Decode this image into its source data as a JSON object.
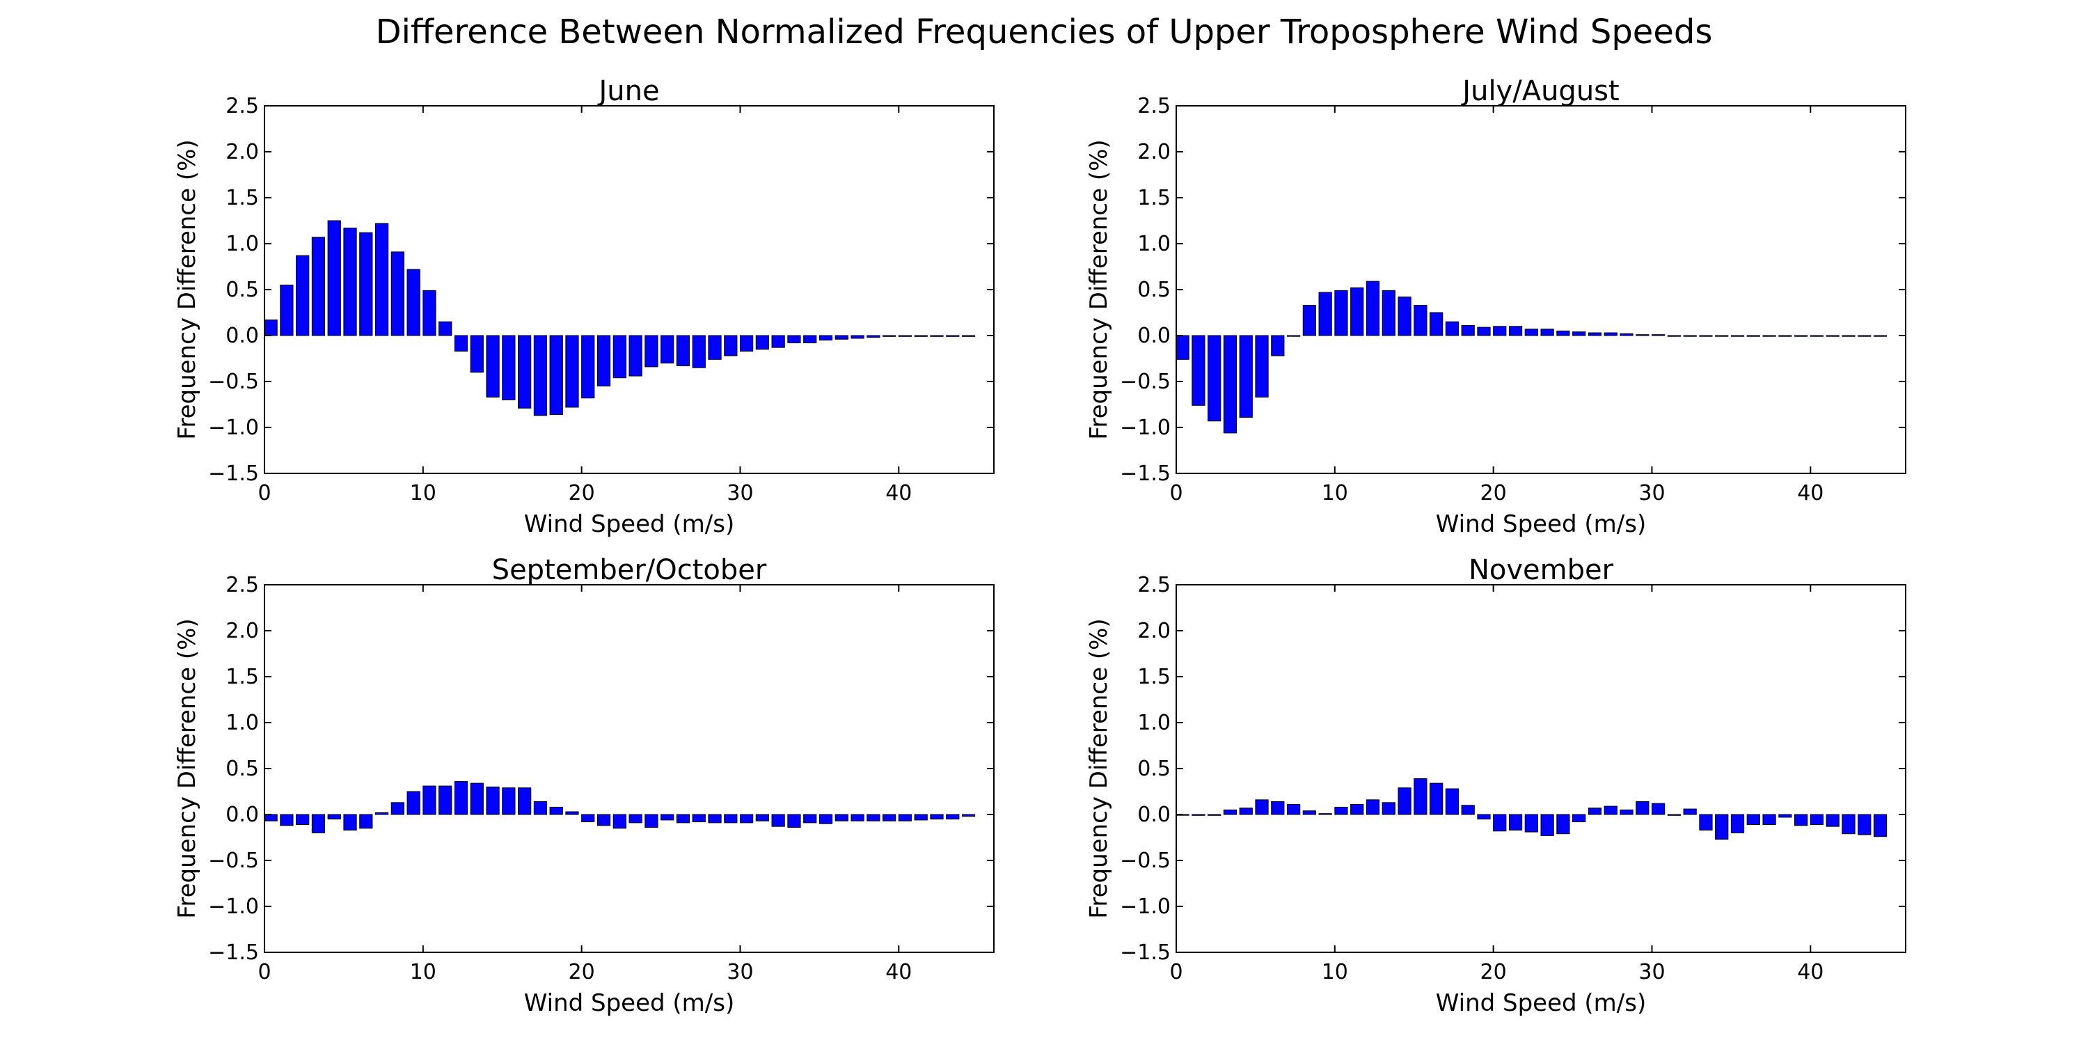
{
  "suptitle": "Difference Between Normalized Frequencies of Upper Troposphere Wind Speeds",
  "colors": {
    "bar_fill": "#0000ff",
    "bar_edge": "#000000",
    "axes": "#000000",
    "background": "#ffffff"
  },
  "chart_data": [
    {
      "type": "bar",
      "title": "June",
      "xlabel": "Wind Speed (m/s)",
      "ylabel": "Frequency Difference (%)",
      "xlim": [
        0,
        46
      ],
      "ylim": [
        -1.5,
        2.5
      ],
      "xticks": [
        0,
        10,
        20,
        30,
        40
      ],
      "yticks": [
        -1.5,
        -1.0,
        -0.5,
        0.0,
        0.5,
        1.0,
        1.5,
        2.0,
        2.5
      ],
      "grid": false,
      "x": [
        0,
        1,
        2,
        3,
        4,
        5,
        6,
        7,
        8,
        9,
        10,
        11,
        12,
        13,
        14,
        15,
        16,
        17,
        18,
        19,
        20,
        21,
        22,
        23,
        24,
        25,
        26,
        27,
        28,
        29,
        30,
        31,
        32,
        33,
        34,
        35,
        36,
        37,
        38,
        39,
        40,
        41,
        42,
        43,
        44
      ],
      "values": [
        0.17,
        0.55,
        0.87,
        1.07,
        1.25,
        1.17,
        1.12,
        1.22,
        0.91,
        0.72,
        0.49,
        0.15,
        -0.17,
        -0.4,
        -0.67,
        -0.7,
        -0.79,
        -0.87,
        -0.86,
        -0.78,
        -0.68,
        -0.55,
        -0.46,
        -0.44,
        -0.34,
        -0.3,
        -0.33,
        -0.35,
        -0.26,
        -0.22,
        -0.17,
        -0.15,
        -0.13,
        -0.08,
        -0.08,
        -0.05,
        -0.04,
        -0.03,
        -0.02,
        -0.01,
        -0.01,
        -0.01,
        -0.01,
        -0.01,
        -0.01
      ]
    },
    {
      "type": "bar",
      "title": "July/August",
      "xlabel": "Wind Speed (m/s)",
      "ylabel": "Frequency Difference (%)",
      "xlim": [
        0,
        46
      ],
      "ylim": [
        -1.5,
        2.5
      ],
      "xticks": [
        0,
        10,
        20,
        30,
        40
      ],
      "yticks": [
        -1.5,
        -1.0,
        -0.5,
        0.0,
        0.5,
        1.0,
        1.5,
        2.0,
        2.5
      ],
      "grid": false,
      "x": [
        0,
        1,
        2,
        3,
        4,
        5,
        6,
        7,
        8,
        9,
        10,
        11,
        12,
        13,
        14,
        15,
        16,
        17,
        18,
        19,
        20,
        21,
        22,
        23,
        24,
        25,
        26,
        27,
        28,
        29,
        30,
        31,
        32,
        33,
        34,
        35,
        36,
        37,
        38,
        39,
        40,
        41,
        42,
        43,
        44
      ],
      "values": [
        -0.26,
        -0.76,
        -0.93,
        -1.06,
        -0.89,
        -0.67,
        -0.22,
        0.0,
        0.33,
        0.47,
        0.49,
        0.52,
        0.59,
        0.49,
        0.42,
        0.33,
        0.25,
        0.15,
        0.11,
        0.09,
        0.1,
        0.1,
        0.07,
        0.07,
        0.05,
        0.04,
        0.03,
        0.03,
        0.02,
        0.01,
        0.01,
        0.0,
        0.0,
        0.0,
        0.0,
        0.0,
        0.0,
        0.0,
        0.0,
        0.0,
        0.0,
        0.0,
        0.0,
        0.0,
        0.0
      ]
    },
    {
      "type": "bar",
      "title": "September/October",
      "xlabel": "Wind Speed (m/s)",
      "ylabel": "Frequency Difference (%)",
      "xlim": [
        0,
        46
      ],
      "ylim": [
        -1.5,
        2.5
      ],
      "xticks": [
        0,
        10,
        20,
        30,
        40
      ],
      "yticks": [
        -1.5,
        -1.0,
        -0.5,
        0.0,
        0.5,
        1.0,
        1.5,
        2.0,
        2.5
      ],
      "grid": false,
      "x": [
        0,
        1,
        2,
        3,
        4,
        5,
        6,
        7,
        8,
        9,
        10,
        11,
        12,
        13,
        14,
        15,
        16,
        17,
        18,
        19,
        20,
        21,
        22,
        23,
        24,
        25,
        26,
        27,
        28,
        29,
        30,
        31,
        32,
        33,
        34,
        35,
        36,
        37,
        38,
        39,
        40,
        41,
        42,
        43,
        44
      ],
      "values": [
        -0.07,
        -0.12,
        -0.11,
        -0.2,
        -0.05,
        -0.17,
        -0.15,
        0.02,
        0.13,
        0.25,
        0.31,
        0.31,
        0.36,
        0.34,
        0.3,
        0.29,
        0.29,
        0.14,
        0.08,
        0.03,
        -0.08,
        -0.12,
        -0.15,
        -0.09,
        -0.14,
        -0.06,
        -0.09,
        -0.08,
        -0.09,
        -0.09,
        -0.09,
        -0.07,
        -0.13,
        -0.14,
        -0.09,
        -0.1,
        -0.07,
        -0.07,
        -0.07,
        -0.07,
        -0.07,
        -0.06,
        -0.05,
        -0.05,
        -0.02
      ]
    },
    {
      "type": "bar",
      "title": "November",
      "xlabel": "Wind Speed (m/s)",
      "ylabel": "Frequency Difference (%)",
      "xlim": [
        0,
        46
      ],
      "ylim": [
        -1.5,
        2.5
      ],
      "xticks": [
        0,
        10,
        20,
        30,
        40
      ],
      "yticks": [
        -1.5,
        -1.0,
        -0.5,
        0.0,
        0.5,
        1.0,
        1.5,
        2.0,
        2.5
      ],
      "grid": false,
      "x": [
        0,
        1,
        2,
        3,
        4,
        5,
        6,
        7,
        8,
        9,
        10,
        11,
        12,
        13,
        14,
        15,
        16,
        17,
        18,
        19,
        20,
        21,
        22,
        23,
        24,
        25,
        26,
        27,
        28,
        29,
        30,
        31,
        32,
        33,
        34,
        35,
        36,
        37,
        38,
        39,
        40,
        41,
        42,
        43,
        44
      ],
      "values": [
        0.0,
        -0.01,
        -0.01,
        0.05,
        0.07,
        0.16,
        0.14,
        0.11,
        0.04,
        0.01,
        0.08,
        0.11,
        0.16,
        0.13,
        0.29,
        0.39,
        0.34,
        0.28,
        0.1,
        -0.05,
        -0.18,
        -0.17,
        -0.19,
        -0.23,
        -0.21,
        -0.08,
        0.07,
        0.09,
        0.05,
        0.14,
        0.12,
        -0.01,
        0.06,
        -0.17,
        -0.27,
        -0.2,
        -0.11,
        -0.11,
        -0.03,
        -0.12,
        -0.11,
        -0.13,
        -0.21,
        -0.22,
        -0.24
      ]
    }
  ]
}
